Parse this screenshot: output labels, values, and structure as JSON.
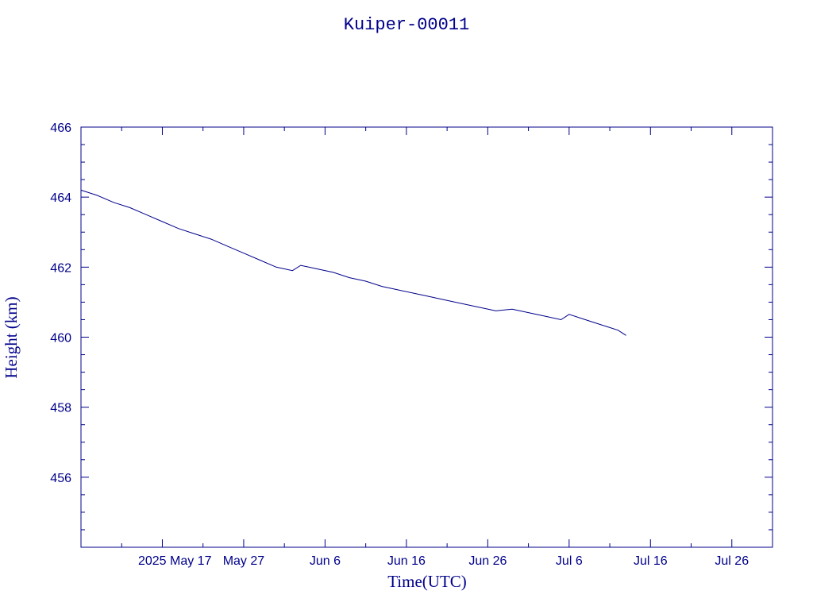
{
  "chart_data": {
    "type": "line",
    "title": "Kuiper-00011",
    "xlabel": "Time(UTC)",
    "ylabel": "Height (km)",
    "x_tick_labels": [
      "2025 May 17",
      "May 27",
      "Jun  6",
      "Jun 16",
      "Jun 26",
      "Jul  6",
      "Jul 16",
      "Jul 26"
    ],
    "x_tick_dates": [
      "2025-05-17",
      "2025-05-27",
      "2025-06-06",
      "2025-06-16",
      "2025-06-26",
      "2025-07-06",
      "2025-07-16",
      "2025-07-26"
    ],
    "x_range": [
      "2025-05-07",
      "2025-07-31"
    ],
    "y_tick_labels": [
      "456",
      "458",
      "460",
      "462",
      "464",
      "466"
    ],
    "ylim": [
      454.0,
      466.0
    ],
    "grid": false,
    "series": [
      {
        "values_x": [
          "2025-05-07",
          "2025-05-09",
          "2025-05-11",
          "2025-05-13",
          "2025-05-15",
          "2025-05-17",
          "2025-05-19",
          "2025-05-21",
          "2025-05-23",
          "2025-05-25",
          "2025-05-27",
          "2025-05-29",
          "2025-05-31",
          "2025-06-02",
          "2025-06-03",
          "2025-06-04",
          "2025-06-05",
          "2025-06-07",
          "2025-06-09",
          "2025-06-11",
          "2025-06-13",
          "2025-06-15",
          "2025-06-17",
          "2025-06-19",
          "2025-06-21",
          "2025-06-23",
          "2025-06-25",
          "2025-06-27",
          "2025-06-29",
          "2025-07-01",
          "2025-07-03",
          "2025-07-05",
          "2025-07-06",
          "2025-07-08",
          "2025-07-10",
          "2025-07-12",
          "2025-07-13"
        ],
        "values_y": [
          464.2,
          464.05,
          463.85,
          463.7,
          463.5,
          463.3,
          463.1,
          462.95,
          462.8,
          462.6,
          462.4,
          462.2,
          462.0,
          461.9,
          462.05,
          462.0,
          461.95,
          461.85,
          461.7,
          461.6,
          461.45,
          461.35,
          461.25,
          461.15,
          461.05,
          460.95,
          460.85,
          460.75,
          460.8,
          460.7,
          460.6,
          460.5,
          460.65,
          460.5,
          460.35,
          460.2,
          460.05
        ]
      }
    ]
  }
}
